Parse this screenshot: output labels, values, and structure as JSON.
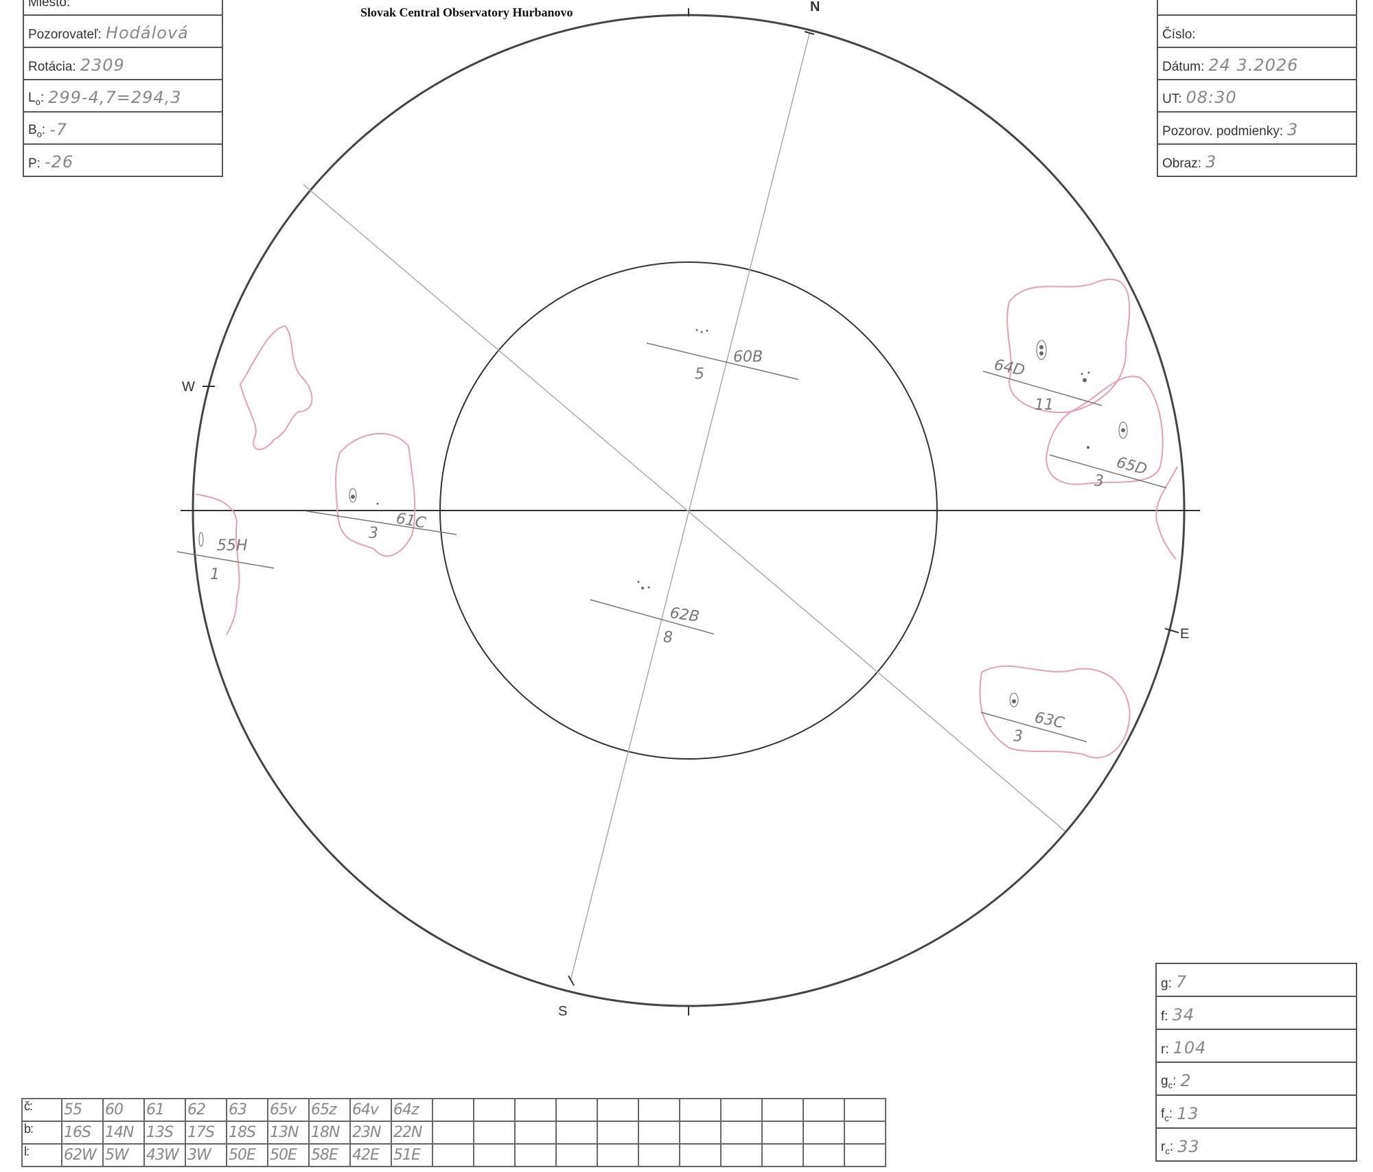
{
  "header": {
    "title": "Slovak Central Observatory Hurbanovo"
  },
  "left_form": [
    {
      "label": "Miesto:",
      "value": ""
    },
    {
      "label": "Pozorovateľ:",
      "value": "Hodálová"
    },
    {
      "label": "Rotácia:",
      "value": "2309"
    },
    {
      "label": "L",
      "sub": "o",
      "suffix": ":",
      "value": "299-4,7=294,3"
    },
    {
      "label": "B",
      "sub": "o",
      "suffix": ":",
      "value": "-7"
    },
    {
      "label": "P:",
      "value": "-26"
    }
  ],
  "right_form": [
    {
      "label": "",
      "value": ""
    },
    {
      "label": "Číslo:",
      "value": ""
    },
    {
      "label": "Dátum:",
      "value": "24 3.2026"
    },
    {
      "label": "UT:",
      "value": "08:30"
    },
    {
      "label": "Pozorov. podmienky:",
      "value": "3"
    },
    {
      "label": "Obraz:",
      "value": "3"
    }
  ],
  "bottom_form": [
    {
      "label": "g:",
      "value": "7"
    },
    {
      "label": "f:",
      "value": "34"
    },
    {
      "label": "r:",
      "value": "104"
    },
    {
      "label": "g",
      "sub": "c",
      "suffix": ":",
      "value": "2"
    },
    {
      "label": "f",
      "sub": "c",
      "suffix": ":",
      "value": "13"
    },
    {
      "label": "r",
      "sub": "c",
      "suffix": ":",
      "value": "33"
    }
  ],
  "directions": {
    "north": "N",
    "south": "S",
    "west": "W",
    "east": "E"
  },
  "sunspot_groups": [
    {
      "label": "60B",
      "count": "5"
    },
    {
      "label": "64D",
      "count": "11"
    },
    {
      "label": "65D",
      "count": "3"
    },
    {
      "label": "61C",
      "count": "3"
    },
    {
      "label": "55H",
      "count": "1"
    },
    {
      "label": "62B",
      "count": "8"
    },
    {
      "label": "63C",
      "count": "3"
    }
  ],
  "spot_table": {
    "row_labels": [
      "č:",
      "b:",
      "l:"
    ],
    "number": [
      "55",
      "60",
      "61",
      "62",
      "63",
      "65v",
      "65z",
      "64v",
      "64z"
    ],
    "latitude": [
      "16S",
      "14N",
      "13S",
      "17S",
      "18S",
      "13N",
      "18N",
      "23N",
      "22N"
    ],
    "longitude": [
      "62W",
      "5W",
      "43W",
      "3W",
      "50E",
      "50E",
      "58E",
      "42E",
      "51E"
    ],
    "total_columns": 20
  },
  "colors": {
    "ink": "#333333",
    "pencil": "#777777",
    "plage": "#e8a0b0"
  }
}
